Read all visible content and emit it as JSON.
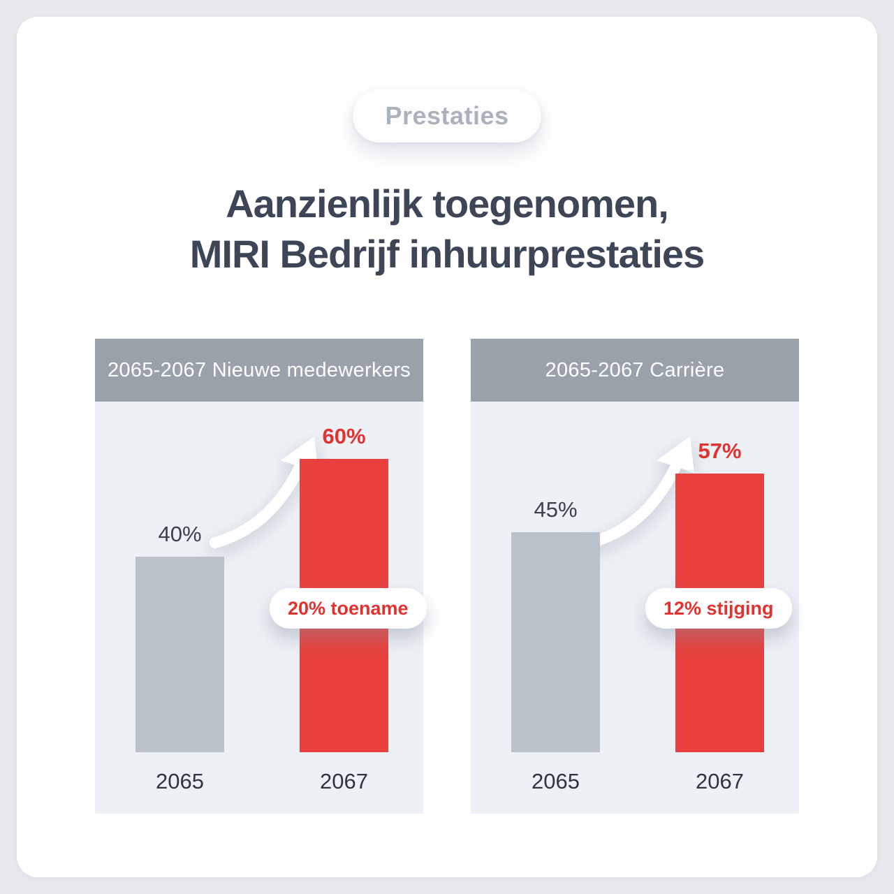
{
  "badge": {
    "label": "Prestaties"
  },
  "title": {
    "line1": "Aanzienlijk toegenomen,",
    "line2": "MIRI Bedrijf inhuurprestaties"
  },
  "colors": {
    "accent_red": "#e8413d",
    "bar_gray": "#b9c2ca",
    "header_gray": "#99a1ab",
    "title_text": "#3d4656",
    "badge_text": "#a9b2bd",
    "plot_background": "#edf0f5"
  },
  "chart_data": [
    {
      "type": "bar",
      "title": "2065-2067 Nieuwe medewerkers",
      "categories": [
        "2065",
        "2067"
      ],
      "values": [
        40,
        60
      ],
      "value_labels": [
        "40%",
        "60%"
      ],
      "annotation": "20% toename",
      "ylim": [
        0,
        70
      ],
      "bar_colors": [
        "#b9c2ca",
        "#e8413d"
      ],
      "legend": "none",
      "grid": false
    },
    {
      "type": "bar",
      "title": "2065-2067 Carrière",
      "categories": [
        "2065",
        "2067"
      ],
      "values": [
        45,
        57
      ],
      "value_labels": [
        "45%",
        "57%"
      ],
      "annotation": "12% stijging",
      "ylim": [
        0,
        70
      ],
      "bar_colors": [
        "#b9c2ca",
        "#e8413d"
      ],
      "legend": "none",
      "grid": false
    }
  ]
}
